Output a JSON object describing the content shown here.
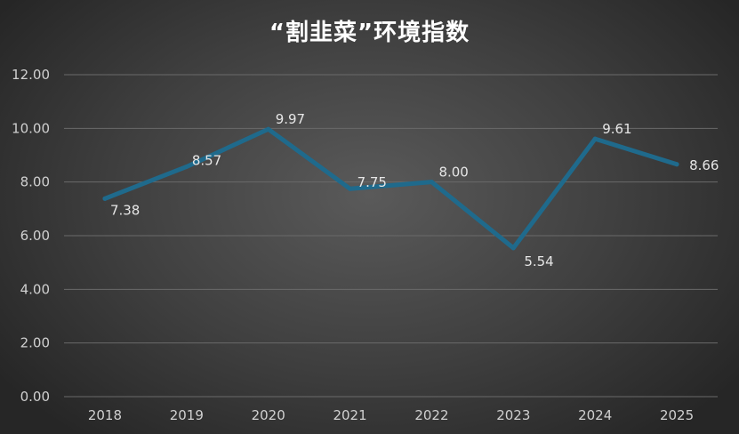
{
  "chart_data": {
    "type": "line",
    "title": "“割韭菜”环境指数",
    "xlabel": "",
    "ylabel": "",
    "categories": [
      "2018",
      "2019",
      "2020",
      "2021",
      "2022",
      "2023",
      "2024",
      "2025"
    ],
    "series": [
      {
        "values": [
          7.38,
          8.57,
          9.97,
          7.75,
          8.0,
          5.54,
          9.61,
          8.66
        ],
        "data_labels": [
          "7.38",
          "8.57",
          "9.97",
          "7.75",
          "8.00",
          "5.54",
          "9.61",
          "8.66"
        ],
        "color": "#1f6a8c"
      }
    ],
    "ylim": [
      0,
      12
    ],
    "yticks": [
      "0.00",
      "2.00",
      "4.00",
      "6.00",
      "8.00",
      "10.00",
      "12.00"
    ],
    "grid": true,
    "legend": "none",
    "background": "#3f3f3f",
    "gridline_color": "#6a6a6a",
    "text_color": "#d0d0d0"
  }
}
